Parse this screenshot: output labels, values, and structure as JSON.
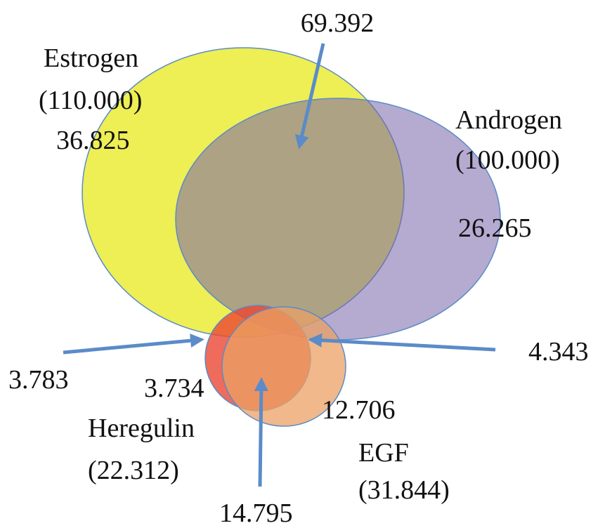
{
  "sets": [
    {
      "name": "Estrogen",
      "size": "(110.000)"
    },
    {
      "name": "Androgen",
      "size": "(100.000)"
    },
    {
      "name": "Heregulin",
      "size": "(22.312)"
    },
    {
      "name": "EGF",
      "size": "(31.844)"
    }
  ],
  "regions": [
    {
      "label": "69.392"
    },
    {
      "label": "36.825"
    },
    {
      "label": "26.265"
    },
    {
      "label": "3.783"
    },
    {
      "label": "3.734"
    },
    {
      "label": "4.343"
    },
    {
      "label": "12.706"
    },
    {
      "label": "14.795"
    }
  ]
}
